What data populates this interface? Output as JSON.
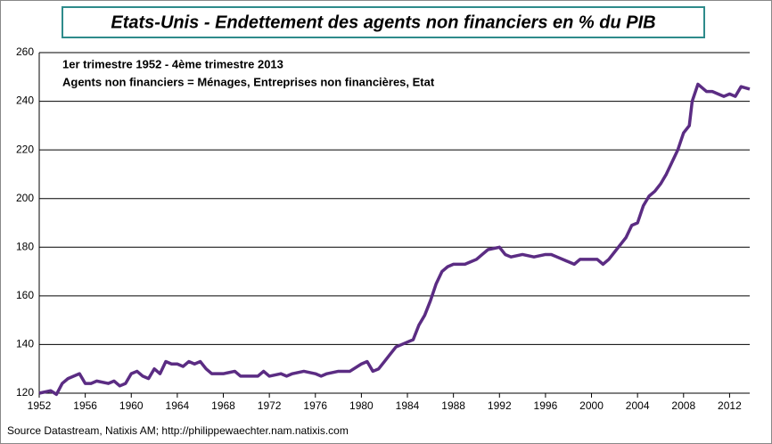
{
  "chart_data": {
    "type": "line",
    "title": "Etats-Unis - Endettement des agents non financiers en % du PIB",
    "subtitle": "1er trimestre 1952 - 4ème trimestre 2013",
    "subtitle2": "Agents non financiers = Ménages, Entreprises non financières, Etat",
    "source": "Source Datastream, Natixis AM;  http://philippewaechter.nam.natixis.com",
    "x": [
      1952,
      1953,
      1953.5,
      1954,
      1954.5,
      1955,
      1955.5,
      1956,
      1956.5,
      1957,
      1958,
      1958.5,
      1959,
      1959.5,
      1960,
      1960.5,
      1961,
      1961.5,
      1962,
      1962.5,
      1963,
      1963.5,
      1964,
      1964.5,
      1965,
      1965.5,
      1966,
      1966.5,
      1967,
      1968,
      1969,
      1969.5,
      1970,
      1971,
      1971.5,
      1972,
      1973,
      1973.5,
      1974,
      1975,
      1976,
      1976.5,
      1977,
      1978,
      1979,
      1980,
      1980.5,
      1981,
      1981.5,
      1982,
      1982.5,
      1983,
      1983.5,
      1984,
      1984.5,
      1985,
      1985.5,
      1986,
      1986.5,
      1987,
      1987.5,
      1988,
      1989,
      1989.5,
      1990,
      1990.5,
      1991,
      1992,
      1992.5,
      1993,
      1994,
      1995,
      1996,
      1996.5,
      1997,
      1998,
      1998.5,
      1999,
      2000,
      2000.5,
      2001,
      2001.5,
      2002,
      2002.5,
      2003,
      2003.5,
      2004,
      2004.5,
      2005,
      2005.5,
      2006,
      2006.5,
      2007,
      2007.5,
      2008,
      2008.5,
      2008.75,
      2009.25,
      2009.75,
      2010,
      2010.5,
      2011,
      2011.5,
      2012,
      2012.5,
      2013,
      2013.75
    ],
    "series": [
      {
        "name": "Agents non financiers",
        "color": "#5b2c83",
        "values": [
          120,
          121,
          119.5,
          124,
          126,
          127,
          128,
          124,
          124,
          125,
          124,
          125,
          123,
          124,
          128,
          129,
          127,
          126,
          130,
          128,
          133,
          132,
          132,
          131,
          133,
          132,
          133,
          130,
          128,
          128,
          129,
          127,
          127,
          127,
          129,
          127,
          128,
          127,
          128,
          129,
          128,
          127,
          128,
          129,
          129,
          132,
          133,
          129,
          130,
          133,
          136,
          139,
          140,
          141,
          142,
          148,
          152,
          158,
          165,
          170,
          172,
          173,
          173,
          174,
          175,
          177,
          179,
          180,
          177,
          176,
          177,
          176,
          177,
          177,
          176,
          174,
          173,
          175,
          175,
          175,
          173,
          175,
          178,
          181,
          184,
          189,
          190,
          197,
          201,
          203,
          206,
          210,
          215,
          220,
          227,
          230,
          240,
          247,
          245,
          244,
          244,
          243,
          242,
          243,
          242,
          246,
          245
        ]
      }
    ],
    "xlim": [
      1952,
      2013.75
    ],
    "xticks": [
      1952,
      1956,
      1960,
      1964,
      1968,
      1972,
      1976,
      1980,
      1984,
      1988,
      1992,
      1996,
      2000,
      2004,
      2008,
      2012
    ],
    "ylim": [
      120,
      260
    ],
    "yticks": [
      120,
      140,
      160,
      180,
      200,
      220,
      240,
      260
    ],
    "grid": true
  }
}
